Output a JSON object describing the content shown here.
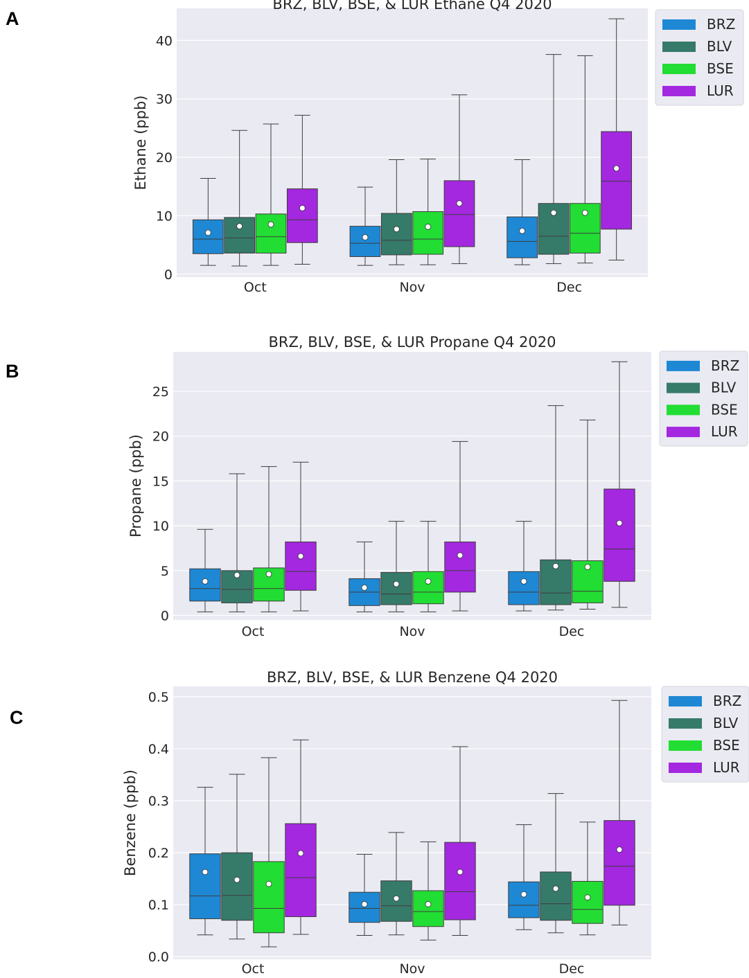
{
  "chart_data": [
    {
      "type": "box",
      "panel_label": "A",
      "title": "BRZ, BLV, BSE, & LUR Ethane Q4 2020",
      "xlabel": "",
      "ylabel": "Ethane (ppb)",
      "ylim": [
        -0.5,
        45.5
      ],
      "yticks": [
        0,
        10,
        20,
        30,
        40
      ],
      "grid": true,
      "legend_position": "outside-top-right",
      "categories": [
        "Oct",
        "Nov",
        "Dec"
      ],
      "series": [
        {
          "name": "BRZ",
          "color": "#1e88d4",
          "boxes": [
            {
              "whislo": 1.5,
              "q1": 3.5,
              "med": 6.0,
              "q3": 9.3,
              "whishi": 16.4,
              "mean": 7.1
            },
            {
              "whislo": 1.5,
              "q1": 3.0,
              "med": 5.3,
              "q3": 8.2,
              "whishi": 14.9,
              "mean": 6.3
            },
            {
              "whislo": 1.6,
              "q1": 2.8,
              "med": 5.6,
              "q3": 9.8,
              "whishi": 19.6,
              "mean": 7.4
            }
          ]
        },
        {
          "name": "BLV",
          "color": "#367a6a",
          "boxes": [
            {
              "whislo": 1.4,
              "q1": 3.6,
              "med": 6.2,
              "q3": 9.7,
              "whishi": 24.6,
              "mean": 8.2
            },
            {
              "whislo": 1.6,
              "q1": 3.3,
              "med": 5.8,
              "q3": 10.4,
              "whishi": 19.6,
              "mean": 7.7
            },
            {
              "whislo": 1.8,
              "q1": 3.4,
              "med": 6.5,
              "q3": 12.1,
              "whishi": 37.6,
              "mean": 10.5
            }
          ]
        },
        {
          "name": "BSE",
          "color": "#22dd33",
          "boxes": [
            {
              "whislo": 1.5,
              "q1": 3.6,
              "med": 6.4,
              "q3": 10.3,
              "whishi": 25.7,
              "mean": 8.5
            },
            {
              "whislo": 1.6,
              "q1": 3.4,
              "med": 6.0,
              "q3": 10.7,
              "whishi": 19.7,
              "mean": 8.1
            },
            {
              "whislo": 1.9,
              "q1": 3.6,
              "med": 7.0,
              "q3": 12.1,
              "whishi": 37.4,
              "mean": 10.5
            }
          ]
        },
        {
          "name": "LUR",
          "color": "#a328df",
          "boxes": [
            {
              "whislo": 1.7,
              "q1": 5.4,
              "med": 9.3,
              "q3": 14.6,
              "whishi": 27.2,
              "mean": 11.3
            },
            {
              "whislo": 1.8,
              "q1": 4.7,
              "med": 10.2,
              "q3": 16.0,
              "whishi": 30.7,
              "mean": 12.1
            },
            {
              "whislo": 2.4,
              "q1": 7.7,
              "med": 15.9,
              "q3": 24.4,
              "whishi": 43.7,
              "mean": 18.1
            }
          ]
        }
      ]
    },
    {
      "type": "box",
      "panel_label": "B",
      "title": "BRZ, BLV, BSE, & LUR Propane Q4 2020",
      "xlabel": "",
      "ylabel": "Propane (ppb)",
      "ylim": [
        -0.5,
        29.4
      ],
      "yticks": [
        0,
        5,
        10,
        15,
        20,
        25
      ],
      "grid": true,
      "legend_position": "outside-top-right",
      "categories": [
        "Oct",
        "Nov",
        "Dec"
      ],
      "series": [
        {
          "name": "BRZ",
          "color": "#1e88d4",
          "boxes": [
            {
              "whislo": 0.4,
              "q1": 1.6,
              "med": 3.0,
              "q3": 5.2,
              "whishi": 9.6,
              "mean": 3.8
            },
            {
              "whislo": 0.4,
              "q1": 1.1,
              "med": 2.6,
              "q3": 4.1,
              "whishi": 8.2,
              "mean": 3.1
            },
            {
              "whislo": 0.5,
              "q1": 1.2,
              "med": 2.6,
              "q3": 4.9,
              "whishi": 10.5,
              "mean": 3.8
            }
          ]
        },
        {
          "name": "BLV",
          "color": "#367a6a",
          "boxes": [
            {
              "whislo": 0.4,
              "q1": 1.4,
              "med": 2.9,
              "q3": 5.0,
              "whishi": 15.8,
              "mean": 4.5
            },
            {
              "whislo": 0.4,
              "q1": 1.2,
              "med": 2.4,
              "q3": 4.8,
              "whishi": 10.5,
              "mean": 3.5
            },
            {
              "whislo": 0.6,
              "q1": 1.2,
              "med": 2.5,
              "q3": 6.2,
              "whishi": 23.4,
              "mean": 5.5
            }
          ]
        },
        {
          "name": "BSE",
          "color": "#22dd33",
          "boxes": [
            {
              "whislo": 0.4,
              "q1": 1.6,
              "med": 3.0,
              "q3": 5.3,
              "whishi": 16.6,
              "mean": 4.6
            },
            {
              "whislo": 0.4,
              "q1": 1.3,
              "med": 2.6,
              "q3": 4.9,
              "whishi": 10.5,
              "mean": 3.8
            },
            {
              "whislo": 0.7,
              "q1": 1.4,
              "med": 2.7,
              "q3": 6.1,
              "whishi": 21.8,
              "mean": 5.4
            }
          ]
        },
        {
          "name": "LUR",
          "color": "#a328df",
          "boxes": [
            {
              "whislo": 0.5,
              "q1": 2.8,
              "med": 4.9,
              "q3": 8.2,
              "whishi": 17.1,
              "mean": 6.6
            },
            {
              "whislo": 0.5,
              "q1": 2.6,
              "med": 5.0,
              "q3": 8.2,
              "whishi": 19.4,
              "mean": 6.7
            },
            {
              "whislo": 0.9,
              "q1": 3.8,
              "med": 7.4,
              "q3": 14.1,
              "whishi": 28.3,
              "mean": 10.3
            }
          ]
        }
      ]
    },
    {
      "type": "box",
      "panel_label": "C",
      "title": "BRZ, BLV, BSE, & LUR Benzene Q4 2020",
      "xlabel": "",
      "ylabel": "Benzene (ppb)",
      "ylim": [
        -0.005,
        0.52
      ],
      "yticks": [
        "0.0",
        "0.1",
        "0.2",
        "0.3",
        "0.4",
        "0.5"
      ],
      "grid": true,
      "legend_position": "outside-top-right",
      "categories": [
        "Oct",
        "Nov",
        "Dec"
      ],
      "series": [
        {
          "name": "BRZ",
          "color": "#1e88d4",
          "boxes": [
            {
              "whislo": 0.042,
              "q1": 0.073,
              "med": 0.117,
              "q3": 0.198,
              "whishi": 0.326,
              "mean": 0.163
            },
            {
              "whislo": 0.041,
              "q1": 0.066,
              "med": 0.093,
              "q3": 0.124,
              "whishi": 0.197,
              "mean": 0.101
            },
            {
              "whislo": 0.052,
              "q1": 0.075,
              "med": 0.099,
              "q3": 0.144,
              "whishi": 0.254,
              "mean": 0.12
            }
          ]
        },
        {
          "name": "BLV",
          "color": "#367a6a",
          "boxes": [
            {
              "whislo": 0.034,
              "q1": 0.07,
              "med": 0.118,
              "q3": 0.2,
              "whishi": 0.351,
              "mean": 0.148
            },
            {
              "whislo": 0.042,
              "q1": 0.068,
              "med": 0.098,
              "q3": 0.146,
              "whishi": 0.239,
              "mean": 0.112
            },
            {
              "whislo": 0.046,
              "q1": 0.07,
              "med": 0.102,
              "q3": 0.163,
              "whishi": 0.314,
              "mean": 0.131
            }
          ]
        },
        {
          "name": "BSE",
          "color": "#22dd33",
          "boxes": [
            {
              "whislo": 0.019,
              "q1": 0.046,
              "med": 0.093,
              "q3": 0.183,
              "whishi": 0.383,
              "mean": 0.14
            },
            {
              "whislo": 0.032,
              "q1": 0.058,
              "med": 0.087,
              "q3": 0.127,
              "whishi": 0.221,
              "mean": 0.101
            },
            {
              "whislo": 0.042,
              "q1": 0.064,
              "med": 0.091,
              "q3": 0.145,
              "whishi": 0.259,
              "mean": 0.114
            }
          ]
        },
        {
          "name": "LUR",
          "color": "#a328df",
          "boxes": [
            {
              "whislo": 0.043,
              "q1": 0.077,
              "med": 0.152,
              "q3": 0.256,
              "whishi": 0.417,
              "mean": 0.199
            },
            {
              "whislo": 0.041,
              "q1": 0.071,
              "med": 0.125,
              "q3": 0.22,
              "whishi": 0.404,
              "mean": 0.163
            },
            {
              "whislo": 0.061,
              "q1": 0.099,
              "med": 0.174,
              "q3": 0.262,
              "whishi": 0.493,
              "mean": 0.206
            }
          ]
        }
      ]
    }
  ]
}
